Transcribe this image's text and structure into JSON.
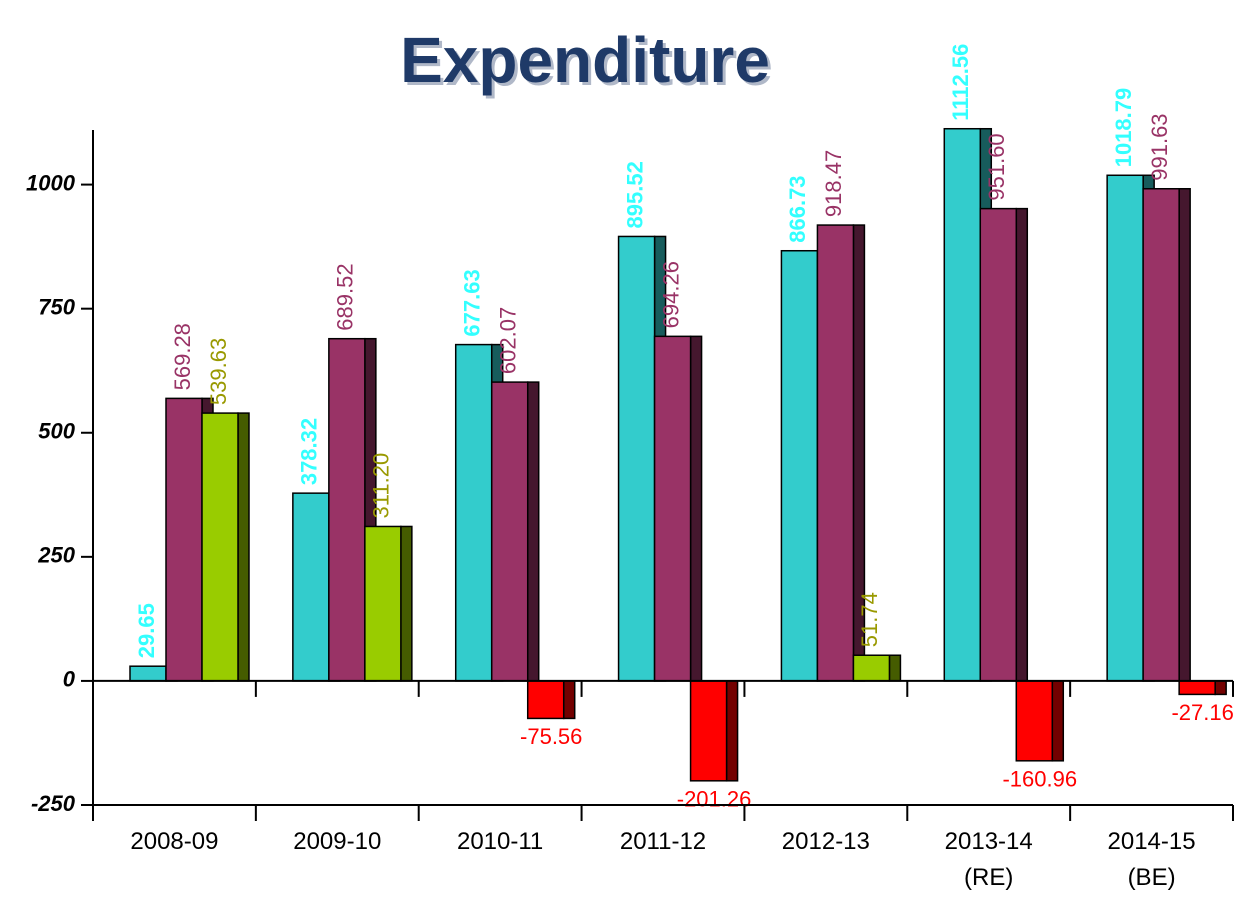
{
  "chart_data": {
    "type": "bar",
    "title": "Expenditure",
    "categories": [
      "2008-09",
      "2009-10",
      "2010-11",
      "2011-12",
      "2012-13",
      "2013-14\n(RE)",
      "2014-15\n(BE)"
    ],
    "series": [
      {
        "color": "#33cccc",
        "label_color": "#33ffff",
        "values": [
          29.65,
          378.32,
          677.63,
          895.52,
          866.73,
          1112.56,
          1018.79
        ],
        "value_labels": [
          "29.65",
          "378.32",
          "677.63",
          "895.52",
          "866.73",
          "1112.56",
          "1018.79"
        ]
      },
      {
        "color": "#993366",
        "label_color": "#993366",
        "values": [
          569.28,
          689.52,
          602.07,
          694.26,
          918.47,
          951.6,
          991.63
        ],
        "value_labels": [
          "569.28",
          "689.52",
          "602.07",
          "694.26",
          "918.47",
          "951.60",
          "991.63"
        ]
      },
      {
        "color": "#99cc00",
        "label_color": "#999900",
        "negative_color": "#ff0000",
        "values": [
          539.63,
          311.2,
          -75.56,
          -201.26,
          51.74,
          -160.96,
          -27.16
        ],
        "value_labels": [
          "539.63",
          "311.20",
          "-75.56",
          "-201.26",
          "51.74",
          "-160.96",
          "-27.16"
        ]
      }
    ],
    "ylim": [
      -250,
      1110
    ],
    "yticks": [
      -250,
      0,
      250,
      500,
      750,
      1000
    ]
  }
}
